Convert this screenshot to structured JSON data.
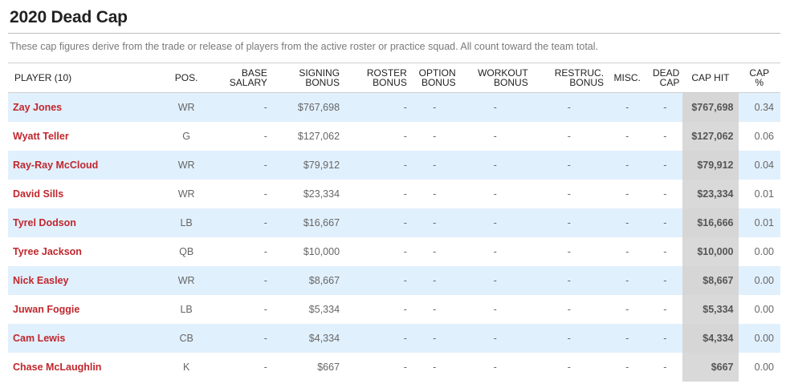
{
  "title": "2020 Dead Cap",
  "description": "These cap figures derive from the trade or release of players from the active roster or practice squad. All count toward the team total.",
  "headers": {
    "player_line1": "PLAYER (10)",
    "pos": "POS.",
    "base_l1": "BASE",
    "base_l2": "SALARY",
    "sign_l1": "SIGNING",
    "sign_l2": "BONUS",
    "roster_l1": "ROSTER",
    "roster_l2": "BONUS",
    "option_l1": "OPTION",
    "option_l2": "BONUS",
    "workout_l1": "WORKOUT",
    "workout_l2": "BONUS",
    "restruc_l1": "RESTRUC.",
    "restruc_l2": "BONUS",
    "misc": "MISC.",
    "dead_l1": "DEAD",
    "dead_l2": "CAP",
    "caphit": "CAP HIT",
    "cappct_l1": "CAP",
    "cappct_l2": "%"
  },
  "rows": [
    {
      "player": "Zay Jones",
      "pos": "WR",
      "base": "-",
      "signing": "$767,698",
      "roster": "-",
      "option": "-",
      "workout": "-",
      "restruc": "-",
      "misc": "-",
      "dead": "-",
      "caphit": "$767,698",
      "pct": "0.34"
    },
    {
      "player": "Wyatt Teller",
      "pos": "G",
      "base": "-",
      "signing": "$127,062",
      "roster": "-",
      "option": "-",
      "workout": "-",
      "restruc": "-",
      "misc": "-",
      "dead": "-",
      "caphit": "$127,062",
      "pct": "0.06"
    },
    {
      "player": "Ray-Ray McCloud",
      "pos": "WR",
      "base": "-",
      "signing": "$79,912",
      "roster": "-",
      "option": "-",
      "workout": "-",
      "restruc": "-",
      "misc": "-",
      "dead": "-",
      "caphit": "$79,912",
      "pct": "0.04"
    },
    {
      "player": "David Sills",
      "pos": "WR",
      "base": "-",
      "signing": "$23,334",
      "roster": "-",
      "option": "-",
      "workout": "-",
      "restruc": "-",
      "misc": "-",
      "dead": "-",
      "caphit": "$23,334",
      "pct": "0.01"
    },
    {
      "player": "Tyrel Dodson",
      "pos": "LB",
      "base": "-",
      "signing": "$16,667",
      "roster": "-",
      "option": "-",
      "workout": "-",
      "restruc": "-",
      "misc": "-",
      "dead": "-",
      "caphit": "$16,666",
      "pct": "0.01"
    },
    {
      "player": "Tyree Jackson",
      "pos": "QB",
      "base": "-",
      "signing": "$10,000",
      "roster": "-",
      "option": "-",
      "workout": "-",
      "restruc": "-",
      "misc": "-",
      "dead": "-",
      "caphit": "$10,000",
      "pct": "0.00"
    },
    {
      "player": "Nick Easley",
      "pos": "WR",
      "base": "-",
      "signing": "$8,667",
      "roster": "-",
      "option": "-",
      "workout": "-",
      "restruc": "-",
      "misc": "-",
      "dead": "-",
      "caphit": "$8,667",
      "pct": "0.00"
    },
    {
      "player": "Juwan Foggie",
      "pos": "LB",
      "base": "-",
      "signing": "$5,334",
      "roster": "-",
      "option": "-",
      "workout": "-",
      "restruc": "-",
      "misc": "-",
      "dead": "-",
      "caphit": "$5,334",
      "pct": "0.00"
    },
    {
      "player": "Cam Lewis",
      "pos": "CB",
      "base": "-",
      "signing": "$4,334",
      "roster": "-",
      "option": "-",
      "workout": "-",
      "restruc": "-",
      "misc": "-",
      "dead": "-",
      "caphit": "$4,334",
      "pct": "0.00"
    },
    {
      "player": "Chase McLaughlin",
      "pos": "K",
      "base": "-",
      "signing": "$667",
      "roster": "-",
      "option": "-",
      "workout": "-",
      "restruc": "-",
      "misc": "-",
      "dead": "-",
      "caphit": "$667",
      "pct": "0.00"
    }
  ]
}
